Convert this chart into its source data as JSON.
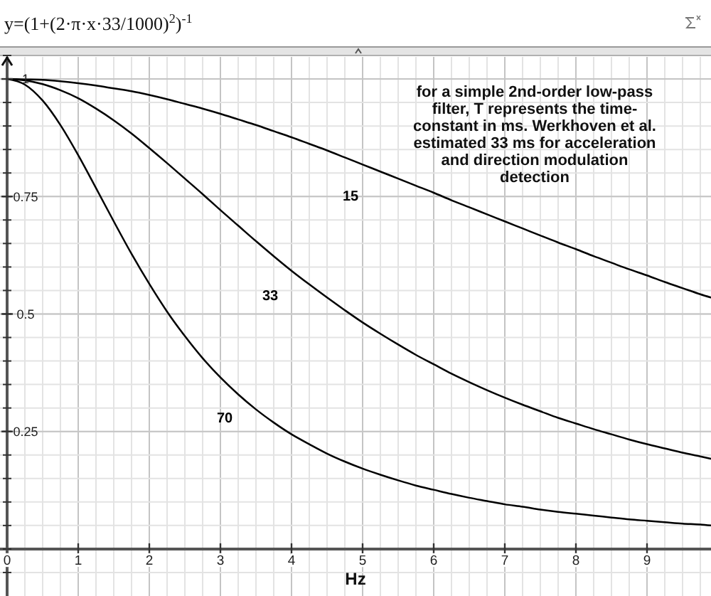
{
  "chart_data": {
    "type": "line",
    "title": "y=(1+(2·π·x·33/1000)$^{2}$)$^{-1}$",
    "xlabel": "Hz",
    "annotations": [
      "for a simple 2nd-order low-pass filter, T represents the time-constant in ms. Werkhoven et al. estimated 33 ms for acceleration and direction modulation detection"
    ],
    "x": [
      0,
      0.25,
      0.5,
      0.75,
      1,
      1.25,
      1.5,
      1.75,
      2,
      2.25,
      2.5,
      2.75,
      3,
      3.25,
      3.5,
      3.75,
      4,
      4.25,
      4.5,
      4.75,
      5,
      5.25,
      5.5,
      5.75,
      6,
      6.25,
      6.5,
      6.75,
      7,
      7.25,
      7.5,
      7.75,
      8,
      8.25,
      8.5,
      8.75,
      9,
      9.25,
      9.5,
      9.75,
      9.9
    ],
    "series": [
      {
        "name": "15",
        "color": "#000000",
        "values": [
          1,
          0.999,
          0.998,
          0.995,
          0.991,
          0.986,
          0.98,
          0.974,
          0.966,
          0.957,
          0.947,
          0.937,
          0.926,
          0.914,
          0.902,
          0.889,
          0.876,
          0.862,
          0.848,
          0.833,
          0.818,
          0.803,
          0.788,
          0.773,
          0.758,
          0.742,
          0.727,
          0.712,
          0.697,
          0.682,
          0.667,
          0.652,
          0.638,
          0.623,
          0.609,
          0.595,
          0.582,
          0.568,
          0.555,
          0.542,
          0.535
        ]
      },
      {
        "name": "33",
        "color": "#000000",
        "values": [
          1,
          0.997,
          0.989,
          0.976,
          0.959,
          0.937,
          0.912,
          0.884,
          0.853,
          0.821,
          0.788,
          0.755,
          0.721,
          0.688,
          0.655,
          0.623,
          0.592,
          0.563,
          0.535,
          0.508,
          0.482,
          0.458,
          0.435,
          0.413,
          0.393,
          0.373,
          0.355,
          0.338,
          0.322,
          0.307,
          0.293,
          0.279,
          0.267,
          0.255,
          0.244,
          0.233,
          0.223,
          0.214,
          0.205,
          0.197,
          0.192
        ]
      },
      {
        "name": "70",
        "color": "#000000",
        "values": [
          1,
          0.988,
          0.954,
          0.902,
          0.838,
          0.768,
          0.697,
          0.628,
          0.564,
          0.505,
          0.453,
          0.406,
          0.365,
          0.329,
          0.297,
          0.269,
          0.244,
          0.223,
          0.203,
          0.186,
          0.171,
          0.158,
          0.146,
          0.135,
          0.126,
          0.117,
          0.109,
          0.102,
          0.095,
          0.09,
          0.084,
          0.079,
          0.075,
          0.071,
          0.067,
          0.063,
          0.06,
          0.057,
          0.054,
          0.052,
          0.05
        ]
      }
    ],
    "xlim": [
      -0.1,
      9.9
    ],
    "ylim": [
      -0.1,
      1.05
    ],
    "xticks": [
      0,
      1,
      2,
      3,
      4,
      5,
      6,
      7,
      8,
      9
    ],
    "yticks": [
      0.25,
      0.5,
      0.75,
      1
    ],
    "grid": true
  }
}
